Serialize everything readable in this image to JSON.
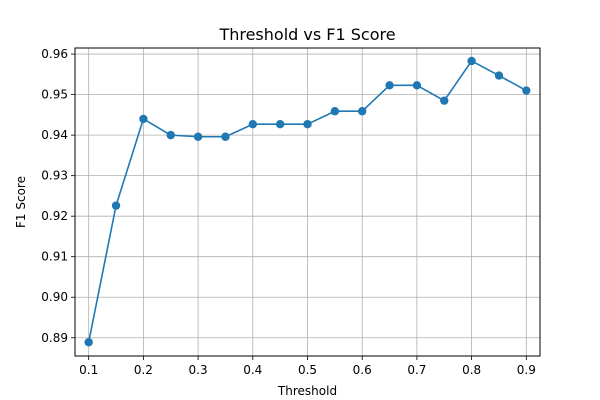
{
  "chart_data": {
    "type": "line",
    "title": "Threshold vs F1 Score",
    "xlabel": "Threshold",
    "ylabel": "F1 Score",
    "grid": true,
    "xlim": [
      0.075,
      0.925
    ],
    "ylim": [
      0.8855,
      0.9615
    ],
    "x_ticks": [
      "0.1",
      "0.2",
      "0.3",
      "0.4",
      "0.5",
      "0.6",
      "0.7",
      "0.8",
      "0.9"
    ],
    "y_ticks": [
      "0.89",
      "0.90",
      "0.91",
      "0.92",
      "0.93",
      "0.94",
      "0.95",
      "0.96"
    ],
    "series": [
      {
        "color": "#1f77b4",
        "marker": "circle",
        "x": [
          0.1,
          0.15,
          0.2,
          0.25,
          0.3,
          0.35,
          0.4,
          0.45,
          0.5,
          0.55,
          0.6,
          0.65,
          0.7,
          0.75,
          0.8,
          0.85,
          0.9
        ],
        "y": [
          0.8889,
          0.9226,
          0.944,
          0.94,
          0.9396,
          0.9396,
          0.9427,
          0.9427,
          0.9427,
          0.9459,
          0.9459,
          0.9523,
          0.9523,
          0.9485,
          0.9583,
          0.9547,
          0.951
        ]
      }
    ]
  }
}
